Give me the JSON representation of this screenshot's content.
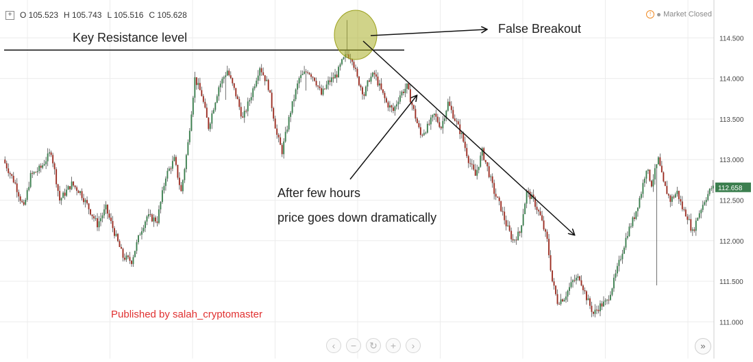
{
  "header": {
    "open": "O 105.523",
    "high": "H 105.743",
    "low": "L 105.516",
    "close": "C 105.628",
    "market_status": "Market Closed"
  },
  "publisher": "Published by salah_cryptomaster",
  "chart_data": {
    "type": "candlestick",
    "y_axis": {
      "range": [
        110.8,
        114.9
      ],
      "ticks": [
        111.0,
        111.5,
        112.0,
        112.5,
        113.0,
        113.5,
        114.0,
        114.5
      ],
      "tick_labels": [
        "111.000",
        "111.500",
        "112.000",
        "112.500",
        "113.000",
        "113.500",
        "114.000",
        "114.500"
      ],
      "last_price": 112.658,
      "last_price_label": "112.658"
    },
    "grid": true,
    "colors": {
      "up": "#3c7f4f",
      "down": "#9b2d22",
      "wick": "#4a4a4a",
      "last_price_bg": "#3c7f4f"
    },
    "path_keypoints": [
      [
        0,
        113.0
      ],
      [
        7,
        112.7
      ],
      [
        12,
        112.4
      ],
      [
        16,
        112.8
      ],
      [
        22,
        112.9
      ],
      [
        28,
        113.1
      ],
      [
        33,
        112.5
      ],
      [
        40,
        112.7
      ],
      [
        45,
        112.6
      ],
      [
        50,
        112.4
      ],
      [
        55,
        112.2
      ],
      [
        60,
        112.4
      ],
      [
        65,
        112.1
      ],
      [
        70,
        111.8
      ],
      [
        75,
        111.75
      ],
      [
        80,
        112.1
      ],
      [
        84,
        112.3
      ],
      [
        90,
        112.25
      ],
      [
        95,
        112.8
      ],
      [
        100,
        113.0
      ],
      [
        104,
        112.6
      ],
      [
        108,
        113.2
      ],
      [
        112,
        114.0
      ],
      [
        116,
        113.8
      ],
      [
        120,
        113.4
      ],
      [
        126,
        113.9
      ],
      [
        131,
        114.1
      ],
      [
        136,
        113.8
      ],
      [
        140,
        113.5
      ],
      [
        145,
        113.8
      ],
      [
        150,
        114.15
      ],
      [
        155,
        113.9
      ],
      [
        160,
        113.3
      ],
      [
        163,
        113.1
      ],
      [
        168,
        113.6
      ],
      [
        173,
        114.0
      ],
      [
        178,
        114.1
      ],
      [
        182,
        114.0
      ],
      [
        186,
        113.8
      ],
      [
        190,
        113.95
      ],
      [
        195,
        114.05
      ],
      [
        198,
        114.2
      ],
      [
        201,
        114.3
      ],
      [
        204,
        114.25
      ],
      [
        207,
        114.0
      ],
      [
        211,
        113.8
      ],
      [
        214,
        114.0
      ],
      [
        217,
        114.05
      ],
      [
        220,
        113.9
      ],
      [
        224,
        113.7
      ],
      [
        228,
        113.6
      ],
      [
        232,
        113.8
      ],
      [
        236,
        113.9
      ],
      [
        240,
        113.6
      ],
      [
        244,
        113.3
      ],
      [
        248,
        113.4
      ],
      [
        252,
        113.55
      ],
      [
        256,
        113.4
      ],
      [
        260,
        113.7
      ],
      [
        264,
        113.5
      ],
      [
        268,
        113.3
      ],
      [
        272,
        113.0
      ],
      [
        276,
        112.8
      ],
      [
        280,
        113.1
      ],
      [
        283,
        112.9
      ],
      [
        287,
        112.6
      ],
      [
        291,
        112.4
      ],
      [
        294,
        112.2
      ],
      [
        298,
        112.0
      ],
      [
        302,
        112.1
      ],
      [
        306,
        112.6
      ],
      [
        310,
        112.5
      ],
      [
        314,
        112.3
      ],
      [
        318,
        112.0
      ],
      [
        321,
        111.5
      ],
      [
        324,
        111.25
      ],
      [
        328,
        111.3
      ],
      [
        333,
        111.5
      ],
      [
        337,
        111.55
      ],
      [
        341,
        111.3
      ],
      [
        345,
        111.1
      ],
      [
        349,
        111.2
      ],
      [
        353,
        111.25
      ],
      [
        357,
        111.5
      ],
      [
        361,
        111.8
      ],
      [
        365,
        112.1
      ],
      [
        369,
        112.3
      ],
      [
        373,
        112.6
      ],
      [
        376,
        112.9
      ],
      [
        379,
        112.7
      ],
      [
        383,
        113.0
      ],
      [
        386,
        112.7
      ],
      [
        390,
        112.5
      ],
      [
        394,
        112.6
      ],
      [
        397,
        112.4
      ],
      [
        400,
        112.3
      ],
      [
        403,
        112.1
      ],
      [
        406,
        112.3
      ],
      [
        410,
        112.5
      ],
      [
        414,
        112.65
      ]
    ],
    "num_candles": 415,
    "annotations": {
      "false_breakout_label": "False Breakout",
      "resistance_label": "Key Resistance level",
      "note_line1": "After few hours",
      "note_line2": "price goes down dramatically",
      "resistance_level": 114.35
    }
  },
  "controls": {
    "buttons": [
      "‹",
      "−",
      "↻",
      "+",
      "›"
    ],
    "forward": "»"
  }
}
